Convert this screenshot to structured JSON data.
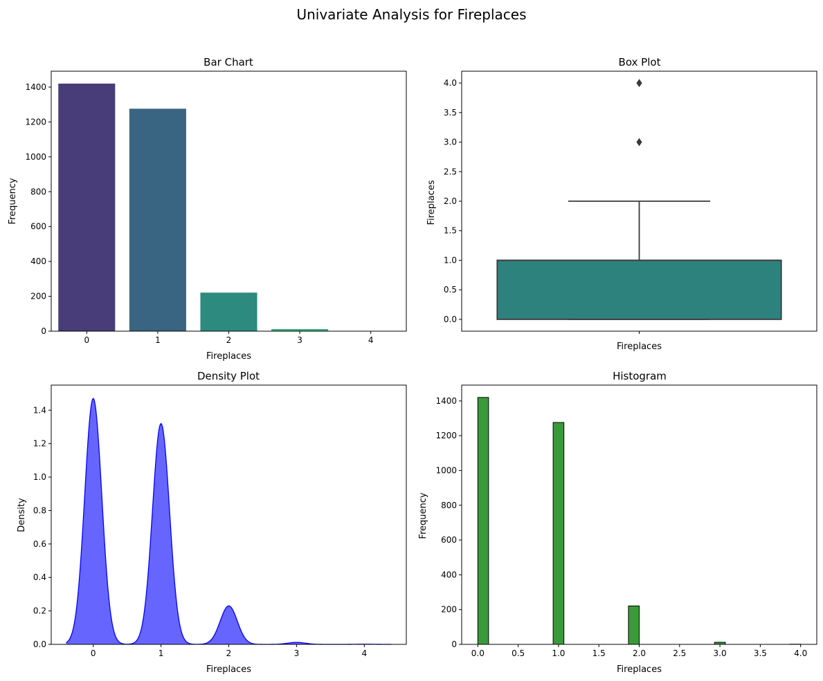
{
  "figure": {
    "title": "Univariate Analysis for Fireplaces"
  },
  "colors": {
    "bar_palette": [
      "#483d78",
      "#3a6582",
      "#2c8a7f",
      "#3bae7a",
      "#6cc85a"
    ],
    "box_fill": "#2e827e",
    "box_line": "#3a3a3a",
    "kde_fill": "#6666ff",
    "kde_line": "#0000ff",
    "hist_fill": "#3a9a3a",
    "hist_edge": "#000000"
  },
  "chart_data": [
    {
      "type": "bar",
      "title": "Bar Chart",
      "xlabel": "Fireplaces",
      "ylabel": "Frequency",
      "categories": [
        "0",
        "1",
        "2",
        "3",
        "4"
      ],
      "values": [
        1420,
        1276,
        221,
        12,
        1
      ],
      "ylim": [
        0,
        1491
      ],
      "yticks": [
        0,
        200,
        400,
        600,
        800,
        1000,
        1200,
        1400
      ],
      "grid": false
    },
    {
      "type": "box",
      "title": "Box Plot",
      "xlabel": "Fireplaces",
      "ylabel": "Fireplaces",
      "stats": {
        "min": 0.0,
        "q1": 0.0,
        "median": 1.0,
        "q3": 1.0,
        "whisker_high": 2.0
      },
      "outliers": [
        3.0,
        4.0
      ],
      "ylim": [
        -0.2,
        4.2
      ],
      "yticks": [
        "0.0",
        "0.5",
        "1.0",
        "1.5",
        "2.0",
        "2.5",
        "3.0",
        "3.5",
        "4.0"
      ],
      "grid": false
    },
    {
      "type": "area",
      "title": "Density Plot",
      "xlabel": "Fireplaces",
      "ylabel": "Density",
      "peaks": [
        {
          "x": 0,
          "y": 1.47
        },
        {
          "x": 1,
          "y": 1.32
        },
        {
          "x": 2,
          "y": 0.23
        },
        {
          "x": 3,
          "y": 0.012
        },
        {
          "x": 4,
          "y": 0.001
        }
      ],
      "x_range": [
        -0.4,
        4.4
      ],
      "xlim": [
        -0.62,
        4.62
      ],
      "ylim": [
        0,
        1.55
      ],
      "xticks": [
        "0",
        "1",
        "2",
        "3",
        "4"
      ],
      "yticks": [
        "0.0",
        "0.2",
        "0.4",
        "0.6",
        "0.8",
        "1.0",
        "1.2",
        "1.4"
      ],
      "grid": false
    },
    {
      "type": "bar",
      "title": "Histogram",
      "xlabel": "Fireplaces",
      "ylabel": "Frequency",
      "bins": [
        {
          "x0": 0.0,
          "x1": 0.1333,
          "count": 1420
        },
        {
          "x0": 0.9333,
          "x1": 1.0667,
          "count": 1276
        },
        {
          "x0": 1.8667,
          "x1": 2.0,
          "count": 221
        },
        {
          "x0": 2.9333,
          "x1": 3.0667,
          "count": 12
        },
        {
          "x0": 3.8667,
          "x1": 4.0,
          "count": 1
        }
      ],
      "xlim": [
        -0.2,
        4.2
      ],
      "ylim": [
        0,
        1491
      ],
      "xticks": [
        "0.0",
        "0.5",
        "1.0",
        "1.5",
        "2.0",
        "2.5",
        "3.0",
        "3.5",
        "4.0"
      ],
      "yticks": [
        0,
        200,
        400,
        600,
        800,
        1000,
        1200,
        1400
      ],
      "grid": false
    }
  ]
}
